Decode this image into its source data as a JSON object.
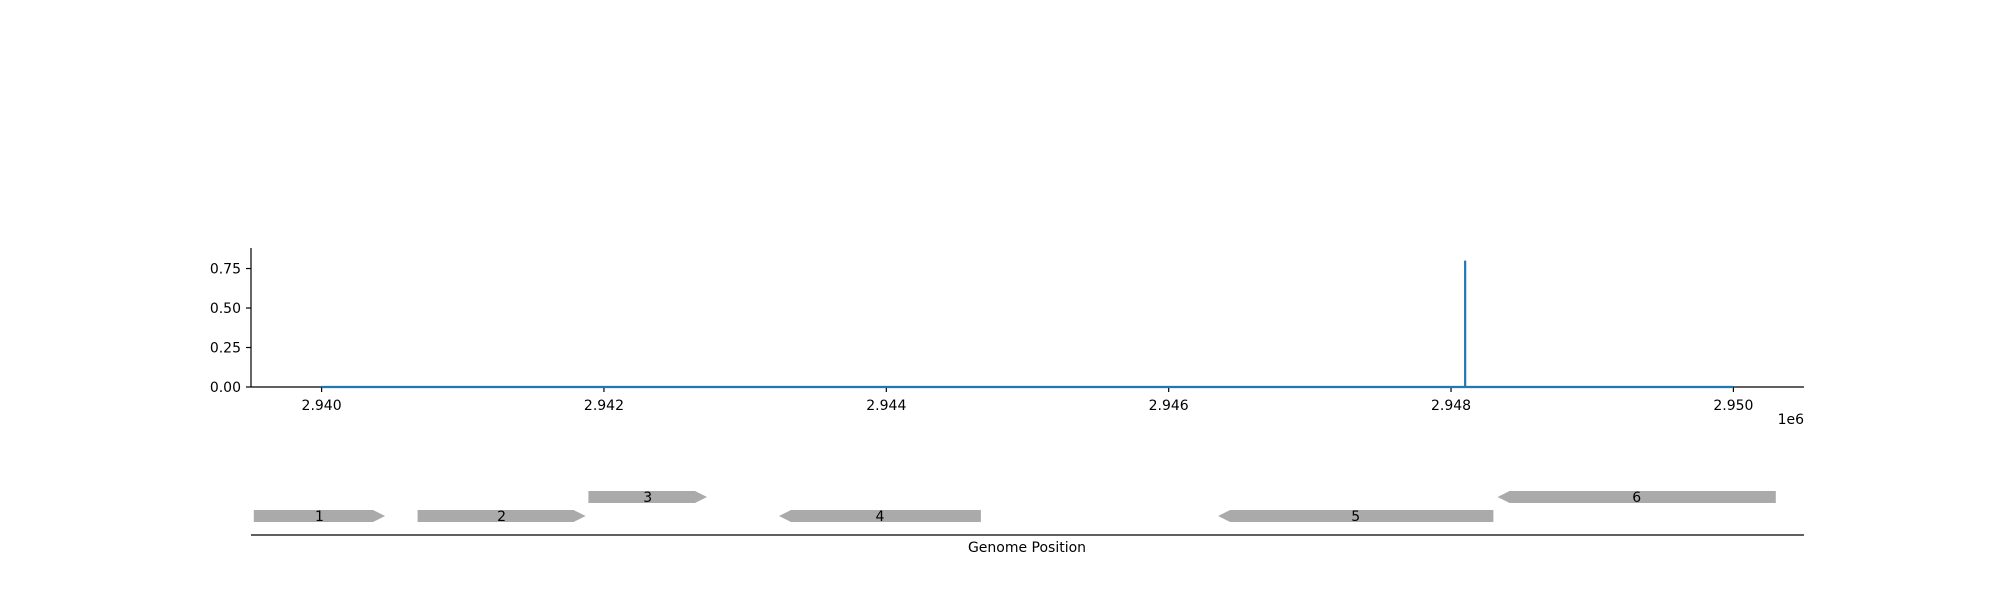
{
  "chart_data": [
    {
      "type": "line",
      "title": "",
      "xlabel": "",
      "ylabel": "",
      "x_offset_label": "1e6",
      "xlim": [
        2.9395,
        2.9505
      ],
      "ylim": [
        0.0,
        0.88
      ],
      "x_ticks": [
        2.94,
        2.942,
        2.944,
        2.946,
        2.948,
        2.95
      ],
      "x_tick_labels": [
        "2.940",
        "2.942",
        "2.944",
        "2.946",
        "2.948",
        "2.950"
      ],
      "y_ticks": [
        0.0,
        0.25,
        0.5,
        0.75
      ],
      "y_tick_labels": [
        "0.00",
        "0.25",
        "0.50",
        "0.75"
      ],
      "grid": false,
      "color": "#1f77b4",
      "series": [
        {
          "x": [
            2.94,
            2.9481,
            2.9481,
            2.9481,
            2.95
          ],
          "y": [
            0.0,
            0.0,
            0.8,
            0.0,
            0.0
          ]
        }
      ]
    },
    {
      "type": "gene-track",
      "xlabel": "Genome Position",
      "color": "#aaaaaa",
      "genes": [
        {
          "label": "1",
          "start": 2.93952,
          "end": 2.94045,
          "strand": "+",
          "row": 0
        },
        {
          "label": "2",
          "start": 2.94068,
          "end": 2.94187,
          "strand": "+",
          "row": 0
        },
        {
          "label": "3",
          "start": 2.94189,
          "end": 2.94273,
          "strand": "+",
          "row": 1
        },
        {
          "label": "4",
          "start": 2.94324,
          "end": 2.94467,
          "strand": "-",
          "row": 0
        },
        {
          "label": "5",
          "start": 2.94635,
          "end": 2.9483,
          "strand": "-",
          "row": 0
        },
        {
          "label": "6",
          "start": 2.94833,
          "end": 2.9503,
          "strand": "-",
          "row": 1
        }
      ]
    }
  ]
}
